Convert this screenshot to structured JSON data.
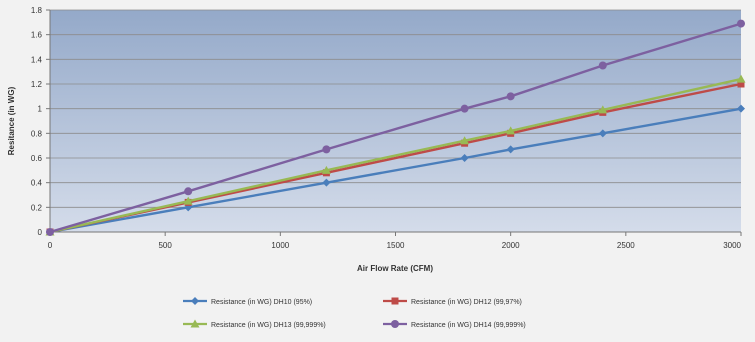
{
  "chart_data": {
    "type": "line",
    "title": "",
    "xlabel": "Air Flow Rate (CFM)",
    "ylabel": "Resitance (in WG)",
    "xlim": [
      0,
      3000
    ],
    "ylim": [
      0,
      1.8
    ],
    "xticks": [
      0,
      500,
      1000,
      1500,
      2000,
      2500,
      3000
    ],
    "yticks": [
      0,
      0.2,
      0.4,
      0.6,
      0.8,
      1,
      1.2,
      1.4,
      1.6,
      1.8
    ],
    "xtick_labels": [
      "0",
      "500",
      "1000",
      "1500",
      "2000",
      "2500",
      "3000"
    ],
    "ytick_labels": [
      "0",
      "0.2",
      "0.4",
      "0.6",
      "0.8",
      "1",
      "1.2",
      "1.4",
      "1.6",
      "1.8"
    ],
    "grid": "horizontal",
    "legend_placement": "bottom",
    "series": [
      {
        "name": "Resistance (in WG) DH10 (95%)",
        "color": "#4a7ebb",
        "marker": "diamond",
        "x": [
          0,
          600,
          1200,
          1800,
          2000,
          2400,
          3000
        ],
        "values": [
          0,
          0.2,
          0.4,
          0.6,
          0.67,
          0.8,
          1.0
        ]
      },
      {
        "name": "Resistance (in WG) DH12 (99,97%)",
        "color": "#be4b48",
        "marker": "square",
        "x": [
          0,
          600,
          1200,
          1800,
          2000,
          2400,
          3000
        ],
        "values": [
          0,
          0.24,
          0.48,
          0.72,
          0.8,
          0.97,
          1.2
        ]
      },
      {
        "name": "Resistance (in WG) DH13 (99,999%)",
        "color": "#98b954",
        "marker": "triangle",
        "x": [
          0,
          600,
          1200,
          1800,
          2000,
          2400,
          3000
        ],
        "values": [
          0,
          0.25,
          0.5,
          0.74,
          0.82,
          0.99,
          1.24
        ]
      },
      {
        "name": "Resistance (in WG) DH14 (99,999%)",
        "color": "#7d60a0",
        "marker": "x",
        "x": [
          0,
          600,
          1200,
          1800,
          2000,
          2400,
          3000
        ],
        "values": [
          0,
          0.33,
          0.67,
          1.0,
          1.1,
          1.35,
          1.69
        ]
      }
    ]
  }
}
